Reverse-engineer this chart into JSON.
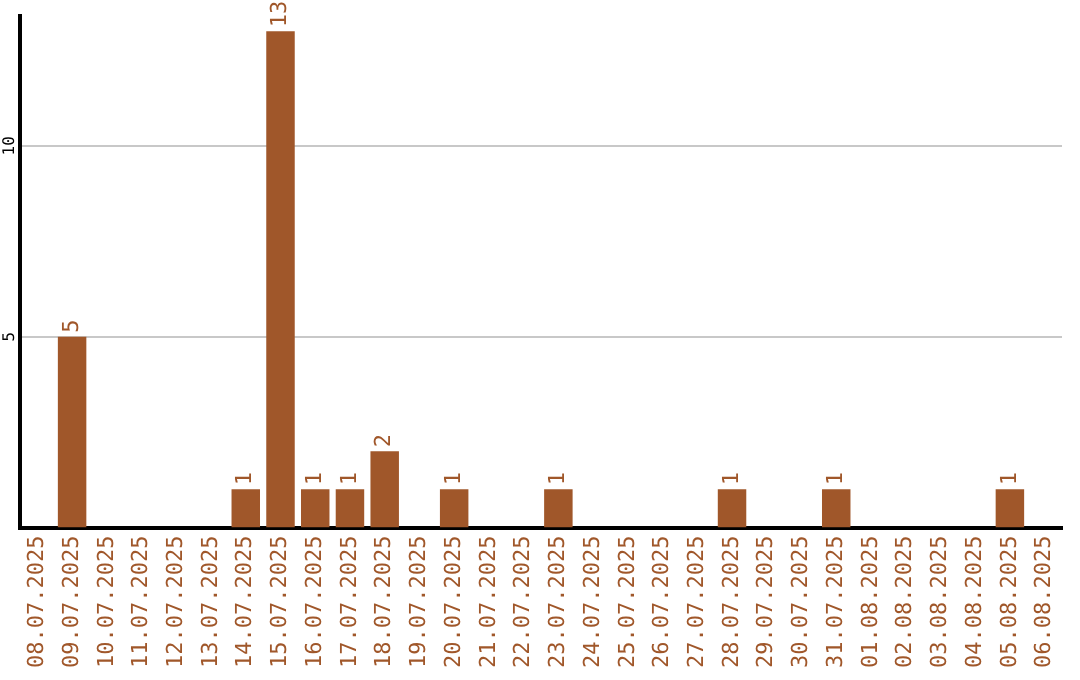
{
  "chart_data": {
    "type": "bar",
    "categories": [
      "08.07.2025",
      "09.07.2025",
      "10.07.2025",
      "11.07.2025",
      "12.07.2025",
      "13.07.2025",
      "14.07.2025",
      "15.07.2025",
      "16.07.2025",
      "17.07.2025",
      "18.07.2025",
      "19.07.2025",
      "20.07.2025",
      "21.07.2025",
      "22.07.2025",
      "23.07.2025",
      "24.07.2025",
      "25.07.2025",
      "26.07.2025",
      "27.07.2025",
      "28.07.2025",
      "29.07.2025",
      "30.07.2025",
      "31.07.2025",
      "01.08.2025",
      "02.08.2025",
      "03.08.2025",
      "04.08.2025",
      "05.08.2025",
      "06.08.2025"
    ],
    "values": [
      0,
      5,
      0,
      0,
      0,
      0,
      1,
      13,
      1,
      1,
      2,
      0,
      1,
      0,
      0,
      1,
      0,
      0,
      0,
      0,
      1,
      0,
      0,
      1,
      0,
      0,
      0,
      0,
      1,
      0
    ],
    "value_labels": [
      null,
      "5",
      null,
      null,
      null,
      null,
      "1",
      "13",
      "1",
      "1",
      "2",
      null,
      "1",
      null,
      null,
      "1",
      null,
      null,
      null,
      null,
      "1",
      null,
      null,
      "1",
      null,
      null,
      null,
      null,
      "1",
      null
    ],
    "color": "#a0572a",
    "ylim": [
      0,
      13.4
    ],
    "yticks": [
      5,
      10
    ],
    "grid": "y",
    "legend": false
  }
}
